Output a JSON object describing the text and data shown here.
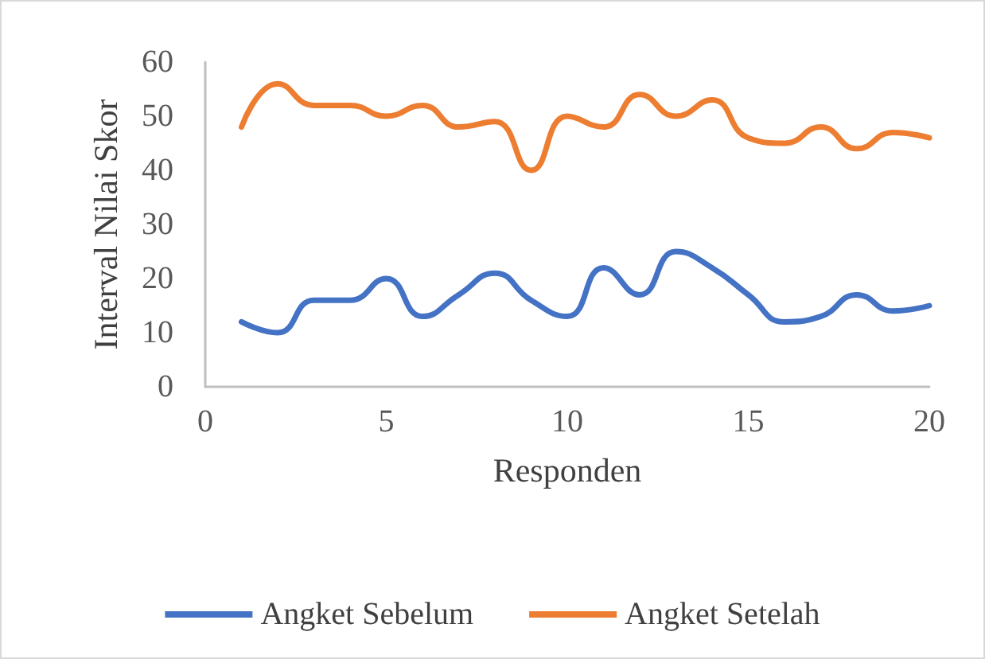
{
  "chart_data": {
    "type": "line",
    "xlabel": "Responden",
    "ylabel": "Interval Nilai Skor",
    "x": [
      1,
      2,
      3,
      4,
      5,
      6,
      7,
      8,
      9,
      10,
      11,
      12,
      13,
      14,
      15,
      16,
      17,
      18,
      19,
      20
    ],
    "series": [
      {
        "name": "Angket Sebelum",
        "color": "#4472c4",
        "values": [
          12,
          10,
          16,
          16,
          20,
          13,
          17,
          21,
          16,
          13,
          22,
          17,
          25,
          22,
          17,
          12,
          13,
          17,
          14,
          15
        ]
      },
      {
        "name": "Angket Setelah",
        "color": "#ed7d31",
        "values": [
          48,
          56,
          52,
          52,
          50,
          52,
          48,
          49,
          40,
          50,
          48,
          54,
          50,
          53,
          46,
          45,
          48,
          44,
          47,
          46
        ]
      }
    ],
    "xlim": [
      0,
      20
    ],
    "xticks": [
      0,
      5,
      10,
      15,
      20
    ],
    "ylim": [
      0,
      60
    ],
    "yticks": [
      0,
      10,
      20,
      30,
      40,
      50,
      60
    ],
    "grid": false,
    "legend": "bottom",
    "marker": "none",
    "line_style": "solid"
  }
}
